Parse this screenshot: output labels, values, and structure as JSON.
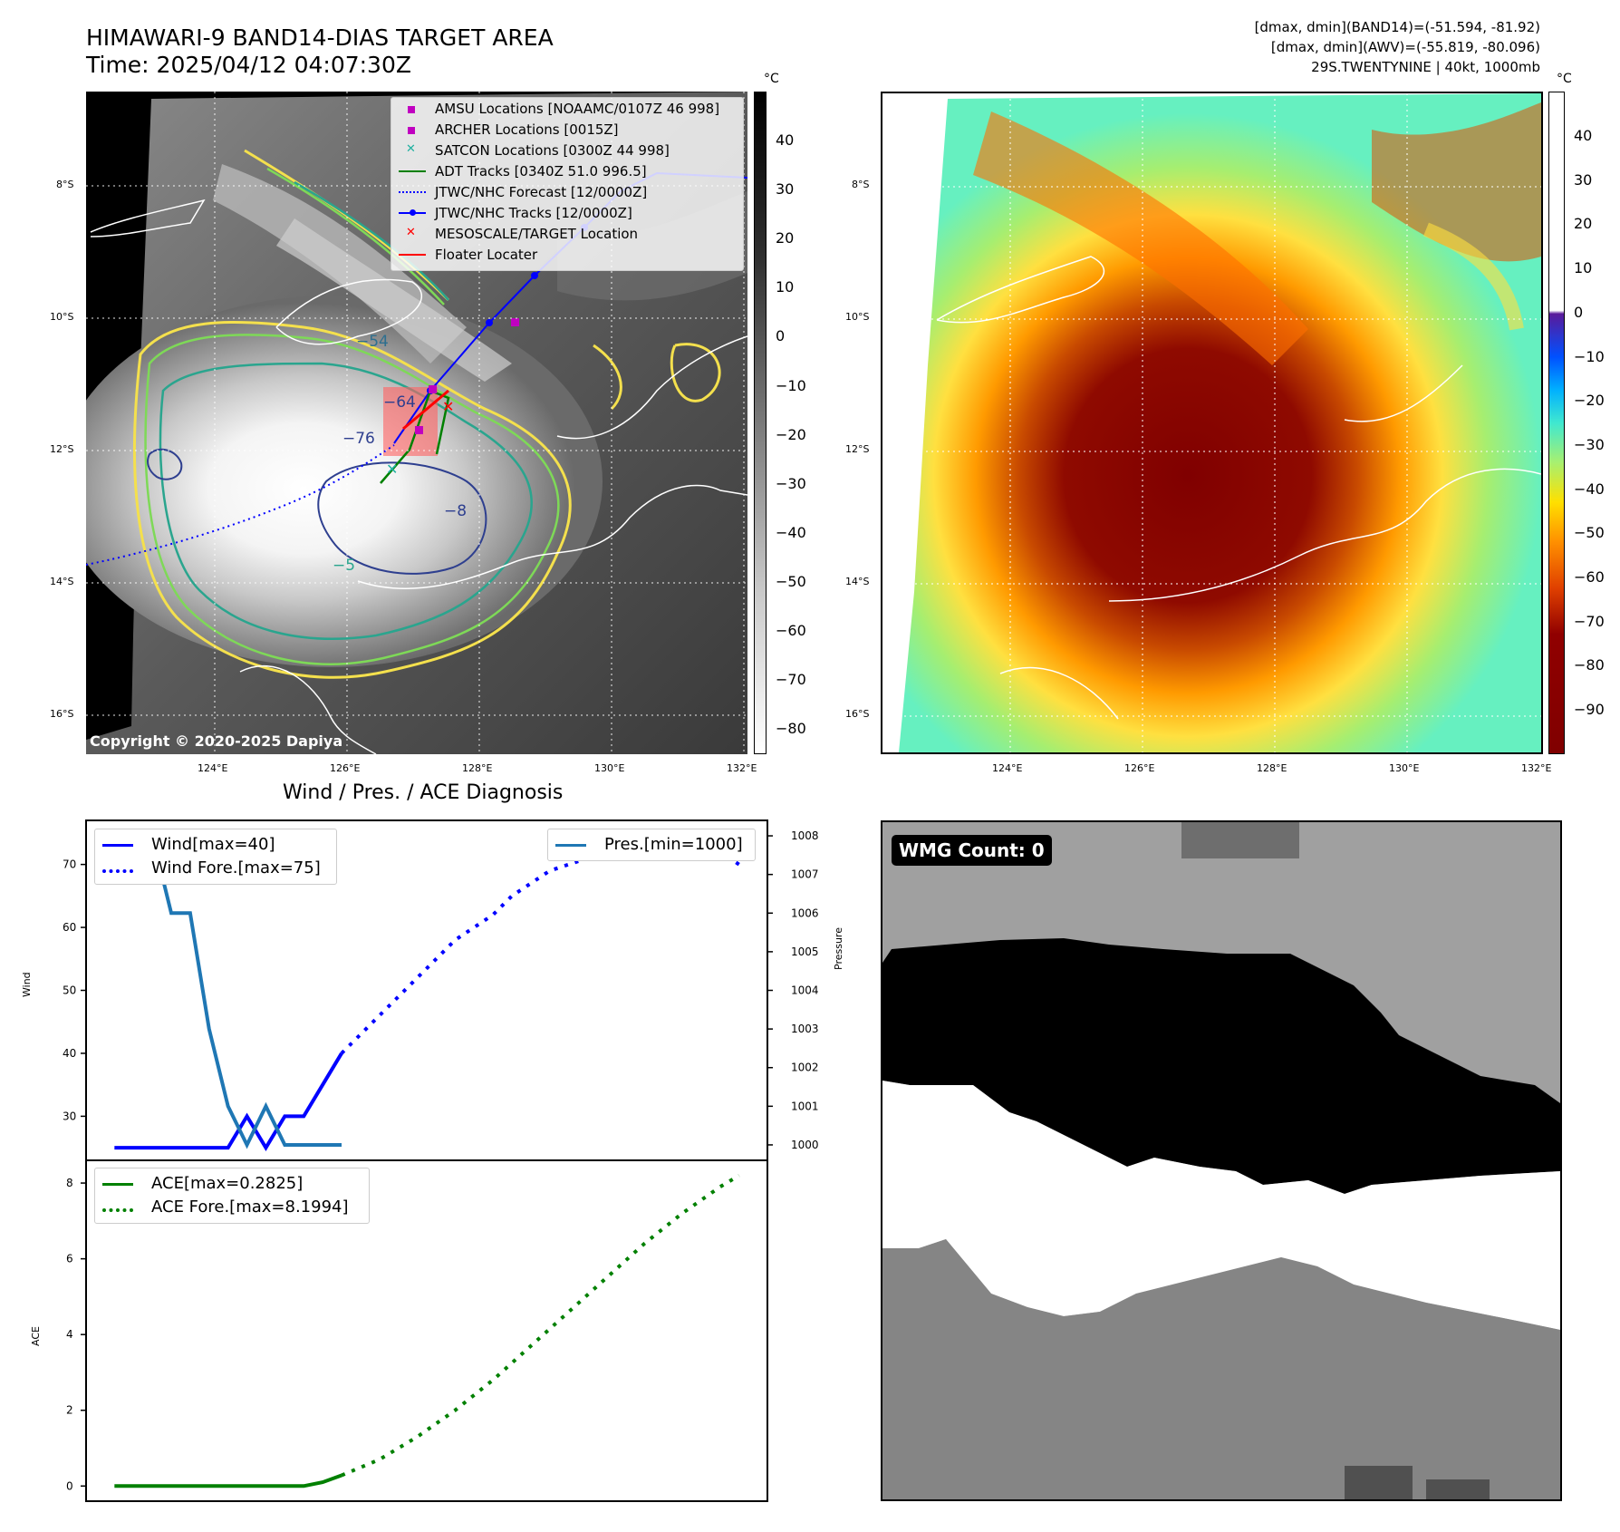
{
  "header": {
    "title_line1": "HIMAWARI-9 BAND14-DIAS TARGET AREA",
    "title_line2": "Time: 2025/04/12 04:07:30Z",
    "info_line1": "[dmax, dmin](BAND14)=(-51.594, -81.92)",
    "info_line2": "[dmax, dmin](AWV)=(-55.819, -80.096)",
    "info_line3": "29S.TWENTYNINE | 40kt, 1000mb"
  },
  "map_axes": {
    "lat_labels": [
      "8°S",
      "10°S",
      "12°S",
      "14°S",
      "16°S"
    ],
    "lon_labels": [
      "124°E",
      "126°E",
      "128°E",
      "130°E",
      "132°E"
    ]
  },
  "ir_panel": {
    "colorbar_unit": "°C",
    "colorbar_ticks": [
      "40",
      "30",
      "20",
      "10",
      "0",
      "−10",
      "−20",
      "−30",
      "−40",
      "−50",
      "−60",
      "−70",
      "−80"
    ],
    "contour_labels": [
      "−54",
      "−64",
      "−76",
      "−8",
      "−5"
    ],
    "legend": [
      {
        "label": "AMSU Locations [NOAAMC/0107Z 46 998]",
        "marker": "square",
        "color": "#c000c0"
      },
      {
        "label": "ARCHER Locations [0015Z]",
        "marker": "square",
        "color": "#c000c0"
      },
      {
        "label": "SATCON Locations [0300Z 44 998]",
        "marker": "x",
        "color": "#20b0a0"
      },
      {
        "label": "ADT Tracks [0340Z 51.0 996.5]",
        "marker": "line",
        "color": "#008000"
      },
      {
        "label": "JTWC/NHC Forecast [12/0000Z]",
        "marker": "dotted",
        "color": "#0000ff"
      },
      {
        "label": "JTWC/NHC Tracks [12/0000Z]",
        "marker": "line-dot",
        "color": "#0000ff"
      },
      {
        "label": "MESOSCALE/TARGET Location",
        "marker": "x",
        "color": "#ff0000"
      },
      {
        "label": "Floater Locater",
        "marker": "line",
        "color": "#ff0000"
      }
    ],
    "copyright": "Copyright © 2020-2025 Dapiya"
  },
  "awv_panel": {
    "colorbar_unit": "°C",
    "colorbar_ticks": [
      "40",
      "30",
      "20",
      "10",
      "0",
      "−10",
      "−20",
      "−30",
      "−40",
      "−50",
      "−60",
      "−70",
      "−80",
      "−90"
    ]
  },
  "chart_data": [
    {
      "type": "line",
      "title": "Wind / Pres. / ACE Diagnosis",
      "ylabel": "Wind",
      "ylabel_right": "Pressure",
      "yticks_left": [
        "30",
        "40",
        "50",
        "60",
        "70"
      ],
      "yticks_right": [
        "1000",
        "1001",
        "1002",
        "1003",
        "1004",
        "1005",
        "1006",
        "1007",
        "1008"
      ],
      "ylim": [
        23,
        77
      ],
      "ylim_right": [
        999.6,
        1008.4
      ],
      "legend_left": [
        "Wind[max=40]",
        "Wind Fore.[max=75]"
      ],
      "legend_right": [
        "Pres.[min=1000]"
      ],
      "series": [
        {
          "name": "Wind[max=40]",
          "color": "#0000ff",
          "style": "solid",
          "x": [
            0,
            1,
            2,
            3,
            4,
            5,
            6,
            7,
            8,
            9,
            10,
            11,
            12
          ],
          "values": [
            25,
            25,
            25,
            25,
            25,
            25,
            25,
            30,
            25,
            30,
            30,
            35,
            40
          ]
        },
        {
          "name": "Wind Fore.[max=75]",
          "color": "#0000ff",
          "style": "dotted",
          "x": [
            12,
            13,
            14,
            15,
            16,
            17,
            18,
            19,
            20,
            21,
            22,
            23,
            24,
            25,
            26,
            27,
            28,
            29,
            30,
            31,
            32,
            33
          ],
          "values": [
            40,
            43,
            46,
            49,
            52,
            55,
            58,
            60,
            62,
            65,
            67,
            69,
            70,
            71,
            72,
            73,
            75,
            74,
            73,
            72,
            72,
            70
          ]
        },
        {
          "name": "Pres.[min=1000]",
          "color": "#1f77b4",
          "style": "solid",
          "axis": "right",
          "x": [
            0,
            1,
            2,
            3,
            4,
            5,
            6,
            7,
            8,
            9,
            10,
            11,
            12
          ],
          "values": [
            1008,
            1008,
            1008,
            1006,
            1006,
            1003,
            1001,
            1000,
            1001,
            1000,
            1000,
            1000,
            1000
          ]
        }
      ]
    },
    {
      "type": "line",
      "ylabel": "ACE",
      "yticks": [
        "0",
        "2",
        "4",
        "6",
        "8"
      ],
      "ylim": [
        -0.4,
        8.6
      ],
      "legend": [
        "ACE[max=0.2825]",
        "ACE Fore.[max=8.1994]"
      ],
      "series": [
        {
          "name": "ACE[max=0.2825]",
          "color": "#008000",
          "style": "solid",
          "x": [
            0,
            1,
            2,
            3,
            4,
            5,
            6,
            7,
            8,
            9,
            10,
            11,
            12
          ],
          "values": [
            0,
            0,
            0,
            0,
            0,
            0,
            0,
            0,
            0,
            0,
            0,
            0.1,
            0.2825
          ]
        },
        {
          "name": "ACE Fore.[max=8.1994]",
          "color": "#008000",
          "style": "dotted",
          "x": [
            12,
            14,
            16,
            18,
            20,
            22,
            24,
            26,
            28,
            30,
            32,
            33
          ],
          "values": [
            0.2825,
            0.7,
            1.3,
            2.0,
            2.8,
            3.7,
            4.6,
            5.5,
            6.4,
            7.2,
            7.9,
            8.1994
          ]
        }
      ]
    }
  ],
  "wmg_panel": {
    "badge": "WMG Count: 0"
  }
}
